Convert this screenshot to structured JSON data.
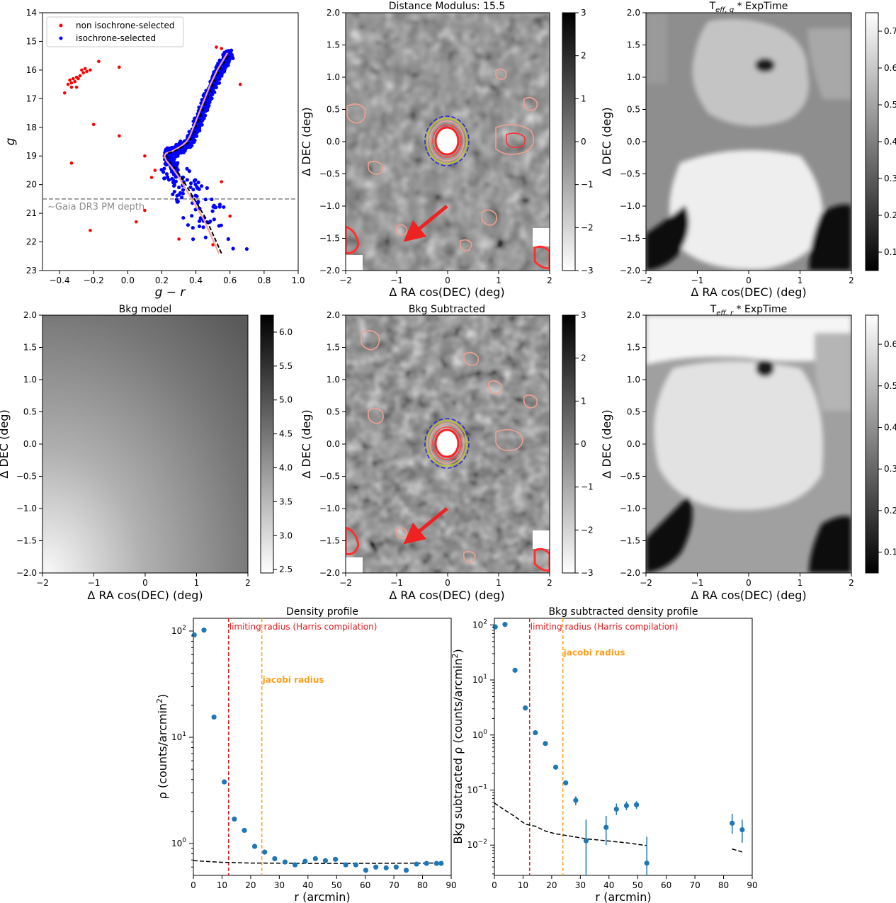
{
  "chart_data": [
    {
      "id": "cmd",
      "type": "scatter",
      "xlabel": "g − r",
      "ylabel": "g",
      "xlim": [
        -0.5,
        1.0
      ],
      "ylim": [
        23,
        14
      ],
      "xticks": [
        -0.4,
        -0.2,
        0.0,
        0.2,
        0.4,
        0.6,
        0.8,
        1.0
      ],
      "xtick_labels": [
        "−0.4",
        "−0.2",
        "0.0",
        "0.2",
        "0.4",
        "0.6",
        "0.8",
        "1.0"
      ],
      "yticks": [
        14,
        15,
        16,
        17,
        18,
        19,
        20,
        21,
        22,
        23
      ],
      "yticks_labels": [
        "14",
        "15",
        "16",
        "17",
        "18",
        "19",
        "20",
        "21",
        "22",
        "23"
      ],
      "legend": [
        "non isochrone-selected",
        "isochrone-selected"
      ],
      "colors": {
        "non": "#ff0000",
        "iso": "#0000ff",
        "isochrone": "#000000",
        "ridge": "#f4a6a0"
      },
      "annotation": {
        "text": "~Gaia DR3 PM depth",
        "y": 20.5
      },
      "non_selected": [
        [
          -0.35,
          16.5
        ],
        [
          -0.34,
          16.35
        ],
        [
          -0.33,
          16.45
        ],
        [
          -0.32,
          16.3
        ],
        [
          -0.31,
          16.4
        ],
        [
          -0.3,
          16.25
        ],
        [
          -0.29,
          16.3
        ],
        [
          -0.28,
          16.2
        ],
        [
          -0.27,
          16.0
        ],
        [
          -0.26,
          16.1
        ],
        [
          -0.25,
          15.95
        ],
        [
          -0.33,
          16.6
        ],
        [
          -0.37,
          16.8
        ],
        [
          -0.24,
          16.05
        ],
        [
          -0.22,
          16.0
        ],
        [
          -0.3,
          16.6
        ],
        [
          -0.2,
          17.9
        ],
        [
          -0.17,
          15.7
        ],
        [
          -0.05,
          15.9
        ],
        [
          -0.05,
          18.3
        ],
        [
          -0.33,
          19.25
        ],
        [
          -0.22,
          21.6
        ],
        [
          0.1,
          19.0
        ],
        [
          0.1,
          20.9
        ],
        [
          0.05,
          21.3
        ],
        [
          0.3,
          21.9
        ],
        [
          0.52,
          15.2
        ],
        [
          0.55,
          15.25
        ],
        [
          0.66,
          16.5
        ],
        [
          0.55,
          19.9
        ],
        [
          0.6,
          21.1
        ],
        [
          0.5,
          22.1
        ],
        [
          0.16,
          19.5
        ],
        [
          0.14,
          19.75
        ]
      ],
      "isochrone_x": [
        0.55,
        0.52,
        0.49,
        0.46,
        0.42,
        0.38,
        0.34,
        0.31,
        0.28,
        0.26,
        0.24,
        0.23,
        0.24,
        0.27,
        0.3,
        0.33,
        0.36,
        0.38,
        0.4,
        0.42,
        0.44,
        0.46,
        0.48,
        0.5,
        0.52,
        0.54,
        0.56,
        0.58,
        0.6
      ],
      "isochrone_y": [
        22.4,
        22.0,
        21.6,
        21.2,
        20.8,
        20.4,
        20.0,
        19.7,
        19.45,
        19.3,
        19.15,
        19.0,
        18.9,
        18.85,
        18.75,
        18.65,
        18.5,
        18.3,
        18.0,
        17.7,
        17.4,
        17.1,
        16.8,
        16.5,
        16.25,
        16.0,
        15.8,
        15.6,
        15.4
      ],
      "iso_points_note": "~1000 isochrone-selected stars scattered around the sequence (rendered along the isochrone with spread)"
    },
    {
      "id": "dm",
      "type": "heatmap",
      "title": "Distance Modulus: 15.5",
      "xlabel": "Δ RA cos(DEC) (deg)",
      "ylabel": "Δ DEC (deg)",
      "xlim": [
        -2,
        2
      ],
      "ylim": [
        -2,
        2
      ],
      "xticks": [
        -2,
        -1,
        0,
        1,
        2
      ],
      "xtick_labels": [
        "−2",
        "−1",
        "0",
        "1",
        "2"
      ],
      "yticks": [
        -2.0,
        -1.5,
        -1.0,
        -0.5,
        0.0,
        0.5,
        1.0,
        1.5,
        2.0
      ],
      "ytick_labels": [
        "−2.0",
        "−1.5",
        "−1.0",
        "−0.5",
        "0.0",
        "0.5",
        "1.0",
        "1.5",
        "2.0"
      ],
      "colorbar": {
        "range": [
          -3,
          3
        ],
        "ticks": [
          3,
          2,
          1,
          0,
          -1,
          -2,
          -3
        ],
        "tick_labels": [
          "3",
          "2",
          "1",
          "0",
          "−1",
          "−2",
          "−3"
        ],
        "cmap": "gray_r"
      },
      "arrow": {
        "from": [
          0.0,
          -1.2
        ],
        "to": [
          -0.75,
          -1.5
        ],
        "color": "#ee2222"
      }
    },
    {
      "id": "teffg",
      "type": "heatmap",
      "title": "T_eff,g * ExpTime",
      "title_main": "T",
      "title_sub": "eff, g",
      "title_rest": " * ExpTime",
      "xlabel": "Δ RA cos(DEC) (deg)",
      "ylabel": "Δ DEC (deg)",
      "xlim": [
        -2,
        2
      ],
      "ylim": [
        -2,
        2
      ],
      "xticks": [
        -2,
        -1,
        0,
        1,
        2
      ],
      "xtick_labels": [
        "−2",
        "−1",
        "0",
        "1",
        "2"
      ],
      "yticks": [
        -2.0,
        -1.5,
        -1.0,
        -0.5,
        0.0,
        0.5,
        1.0,
        1.5,
        2.0
      ],
      "ytick_labels": [
        "−2.0",
        "−1.5",
        "−1.0",
        "−0.5",
        "0.0",
        "0.5",
        "1.0",
        "1.5",
        "2.0"
      ],
      "colorbar": {
        "range": [
          0.05,
          0.75
        ],
        "ticks": [
          0.7,
          0.6,
          0.5,
          0.4,
          0.3,
          0.2,
          0.1
        ],
        "tick_labels": [
          "0.7",
          "0.6",
          "0.5",
          "0.4",
          "0.3",
          "0.2",
          "0.1"
        ],
        "cmap": "gray"
      }
    },
    {
      "id": "bkg",
      "type": "heatmap",
      "title": "Bkg model",
      "xlabel": "Δ RA cos(DEC) (deg)",
      "ylabel": "Δ DEC (deg)",
      "xlim": [
        -2,
        2
      ],
      "ylim": [
        -2,
        2
      ],
      "xticks": [
        -2,
        -1,
        0,
        1,
        2
      ],
      "xtick_labels": [
        "−2",
        "−1",
        "0",
        "1",
        "2"
      ],
      "yticks": [
        -2.0,
        -1.5,
        -1.0,
        -0.5,
        0.0,
        0.5,
        1.0,
        1.5,
        2.0
      ],
      "ytick_labels": [
        "−2.0",
        "−1.5",
        "−1.0",
        "−0.5",
        "0.0",
        "0.5",
        "1.0",
        "1.5",
        "2.0"
      ],
      "colorbar": {
        "range": [
          2.45,
          6.25
        ],
        "ticks": [
          6.0,
          5.5,
          5.0,
          4.5,
          4.0,
          3.5,
          3.0,
          2.5
        ],
        "tick_labels": [
          "6.0",
          "5.5",
          "5.0",
          "4.5",
          "4.0",
          "3.5",
          "3.0",
          "2.5"
        ],
        "cmap": "gray_r"
      }
    },
    {
      "id": "bsub",
      "type": "heatmap",
      "title": "Bkg Subtracted",
      "xlabel": "Δ RA cos(DEC) (deg)",
      "ylabel": "Δ DEC (deg)",
      "xlim": [
        -2,
        2
      ],
      "ylim": [
        -2,
        2
      ],
      "xticks": [
        -2,
        -1,
        0,
        1,
        2
      ],
      "xtick_labels": [
        "−2",
        "−1",
        "0",
        "1",
        "2"
      ],
      "yticks": [
        -2.0,
        -1.5,
        -1.0,
        -0.5,
        0.0,
        0.5,
        1.0,
        1.5,
        2.0
      ],
      "ytick_labels": [
        "−2.0",
        "−1.5",
        "−1.0",
        "−0.5",
        "0.0",
        "0.5",
        "1.0",
        "1.5",
        "2.0"
      ],
      "colorbar": {
        "range": [
          -3,
          3
        ],
        "ticks": [
          3,
          2,
          1,
          0,
          -1,
          -2,
          -3
        ],
        "tick_labels": [
          "3",
          "2",
          "1",
          "0",
          "−1",
          "−2",
          "−3"
        ],
        "cmap": "gray_r"
      },
      "arrow": {
        "from": [
          0.0,
          -1.2
        ],
        "to": [
          -0.75,
          -1.5
        ],
        "color": "#ee2222"
      }
    },
    {
      "id": "teffr",
      "type": "heatmap",
      "title": "T_eff,r * ExpTime",
      "title_main": "T",
      "title_sub": "eff, r",
      "title_rest": " * ExpTime",
      "xlabel": "Δ RA cos(DEC) (deg)",
      "ylabel": "Δ DEC (deg)",
      "xlim": [
        -2,
        2
      ],
      "ylim": [
        -2,
        2
      ],
      "xticks": [
        -2,
        -1,
        0,
        1,
        2
      ],
      "xtick_labels": [
        "−2",
        "−1",
        "0",
        "1",
        "2"
      ],
      "yticks": [
        -2.0,
        -1.5,
        -1.0,
        -0.5,
        0.0,
        0.5,
        1.0,
        1.5,
        2.0
      ],
      "ytick_labels": [
        "−2.0",
        "−1.5",
        "−1.0",
        "−0.5",
        "0.0",
        "0.5",
        "1.0",
        "1.5",
        "2.0"
      ],
      "colorbar": {
        "range": [
          0.05,
          0.67
        ],
        "ticks": [
          0.6,
          0.5,
          0.4,
          0.3,
          0.2,
          0.1
        ],
        "tick_labels": [
          "0.6",
          "0.5",
          "0.4",
          "0.3",
          "0.2",
          "0.1"
        ],
        "cmap": "gray"
      }
    },
    {
      "id": "dens",
      "type": "scatter",
      "title": "Density profile",
      "xlabel": "r (arcmin)",
      "ylabel_main": "ρ (counts/arcmin",
      "ylabel_sup": "2",
      "ylabel_end": ")",
      "xlim": [
        0,
        90
      ],
      "ylim_log": [
        -0.3,
        2.12
      ],
      "xticks": [
        0,
        10,
        20,
        30,
        40,
        50,
        60,
        70,
        80,
        90
      ],
      "xtick_labels": [
        "0",
        "10",
        "20",
        "30",
        "40",
        "50",
        "60",
        "70",
        "80",
        "90"
      ],
      "ytick_exps": [
        "2",
        "1",
        "0"
      ],
      "ytick_base": "10",
      "ytick_exp_values": [
        2,
        1,
        0
      ],
      "x": [
        0.3,
        3.7,
        7.2,
        10.8,
        14.3,
        17.8,
        21.4,
        24.9,
        28.4,
        32.0,
        35.5,
        39.0,
        42.6,
        46.1,
        49.6,
        53.2,
        56.7,
        60.2,
        63.7,
        67.3,
        70.8,
        74.3,
        77.9,
        81.4,
        84.9,
        86.5
      ],
      "y": [
        92,
        102,
        15.5,
        3.8,
        1.7,
        1.33,
        0.94,
        0.83,
        0.72,
        0.67,
        0.63,
        0.68,
        0.72,
        0.69,
        0.71,
        0.63,
        0.63,
        0.56,
        0.6,
        0.59,
        0.6,
        0.56,
        0.64,
        0.65,
        0.65,
        0.65
      ],
      "bkg_level": [
        [
          0,
          0.69
        ],
        [
          10,
          0.665
        ],
        [
          20,
          0.655
        ],
        [
          40,
          0.65
        ],
        [
          60,
          0.65
        ],
        [
          87,
          0.655
        ]
      ],
      "limiting_radius": {
        "x": 12.3,
        "label": "limiting radius (Harris compilation)",
        "color": "#e31a1c"
      },
      "jacobi_radius": {
        "x": 23.9,
        "label": "jacobi radius",
        "color": "#ff9f1c"
      },
      "point_color": "#1f77b4"
    },
    {
      "id": "bsdens",
      "type": "scatter",
      "title": "Bkg subtracted density profile",
      "xlabel": "r (arcmin)",
      "ylabel_main": "Bkg subtracted ρ (counts/arcmin",
      "ylabel_sup": "2",
      "ylabel_end": ")",
      "xlim": [
        0,
        90
      ],
      "ylim_log": [
        -2.55,
        2.12
      ],
      "xticks": [
        0,
        10,
        20,
        30,
        40,
        50,
        60,
        70,
        80,
        90
      ],
      "xtick_labels": [
        "0",
        "10",
        "20",
        "30",
        "40",
        "50",
        "60",
        "70",
        "80",
        "90"
      ],
      "ytick_exps": [
        "2",
        "1",
        "0",
        "−1",
        "−2"
      ],
      "ytick_base": "10",
      "ytick_exp_values": [
        2,
        1,
        0,
        -1,
        -2
      ],
      "x": [
        0.3,
        3.7,
        7.2,
        10.8,
        14.3,
        17.8,
        21.4,
        24.9,
        28.4,
        32.0,
        39.0,
        42.6,
        46.1,
        49.6,
        53.2,
        83.0,
        86.5
      ],
      "y": [
        92,
        102,
        15,
        3.1,
        1.1,
        0.7,
        0.26,
        0.135,
        0.065,
        0.012,
        0.021,
        0.045,
        0.052,
        0.054,
        0.0047,
        0.025,
        0.019
      ],
      "yerr_lo": [
        0,
        0,
        0,
        0,
        0,
        0,
        0,
        0,
        0.012,
        0.011,
        0.011,
        0.01,
        0.009,
        0.009,
        0.0045,
        0.009,
        0.008
      ],
      "yerr_hi": [
        0,
        0,
        0,
        0,
        0,
        0,
        0,
        0,
        0.012,
        0.017,
        0.013,
        0.012,
        0.01,
        0.009,
        0.0095,
        0.012,
        0.01
      ],
      "bkg_err_a": [
        [
          0,
          0.058
        ],
        [
          3.7,
          0.043
        ],
        [
          7.2,
          0.033
        ],
        [
          10.8,
          0.024
        ],
        [
          14.3,
          0.022
        ],
        [
          17.8,
          0.018
        ],
        [
          21.4,
          0.016
        ],
        [
          24.9,
          0.015
        ],
        [
          28.4,
          0.014
        ],
        [
          32.0,
          0.013
        ],
        [
          39.0,
          0.012
        ],
        [
          46.1,
          0.011
        ],
        [
          53.2,
          0.0098
        ]
      ],
      "bkg_err_b": [
        [
          83.0,
          0.0085
        ],
        [
          86.5,
          0.0075
        ]
      ],
      "limiting_radius": {
        "x": 12.3,
        "label": "limiting radius (Harris compilation)",
        "color": "#e31a1c"
      },
      "jacobi_radius": {
        "x": 23.9,
        "label": "jacobi radius",
        "color": "#ff9f1c"
      },
      "point_color": "#1f77b4"
    }
  ]
}
